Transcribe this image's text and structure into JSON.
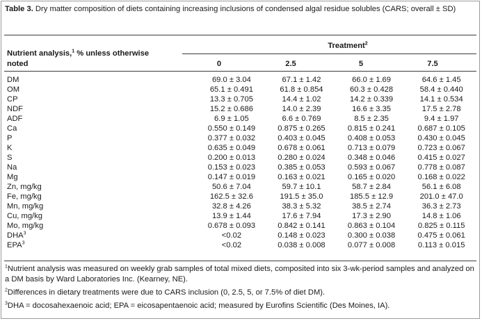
{
  "caption": {
    "label": "Table 3.",
    "text": " Dry matter composition of diets containing increasing inclusions of condensed algal residue solubles (CARS; overall ± SD)"
  },
  "header": {
    "row_label_line1": "Nutrient analysis,",
    "row_label_sup": "1",
    "row_label_line1_tail": " % unless otherwise",
    "row_label_line2": "noted",
    "treatment_label": "Treatment",
    "treatment_sup": "2",
    "columns": [
      "0",
      "2.5",
      "5",
      "7.5"
    ]
  },
  "rows": [
    {
      "label": "DM",
      "sup": "",
      "values": [
        "69.0 ± 3.04",
        "67.1 ± 1.42",
        "66.0 ± 1.69",
        "64.6 ± 1.45"
      ]
    },
    {
      "label": "OM",
      "sup": "",
      "values": [
        "65.1 ± 0.491",
        "61.8 ± 0.854",
        "60.3 ± 0.428",
        "58.4 ± 0.440"
      ]
    },
    {
      "label": "CP",
      "sup": "",
      "values": [
        "13.3 ± 0.705",
        "14.4 ± 1.02",
        "14.2 ± 0.339",
        "14.1 ± 0.534"
      ]
    },
    {
      "label": "NDF",
      "sup": "",
      "values": [
        "15.2 ± 0.686",
        "14.0 ± 2.39",
        "16.6 ± 3.35",
        "17.5 ± 2.78"
      ]
    },
    {
      "label": "ADF",
      "sup": "",
      "values": [
        "6.9 ± 1.05",
        "6.6 ± 0.769",
        "8.5 ± 2.35",
        "9.4 ± 1.97"
      ]
    },
    {
      "label": "Ca",
      "sup": "",
      "values": [
        "0.550 ± 0.149",
        "0.875 ± 0.265",
        "0.815 ± 0.241",
        "0.687 ± 0.105"
      ]
    },
    {
      "label": "P",
      "sup": "",
      "values": [
        "0.377 ± 0.032",
        "0.403 ± 0.045",
        "0.408 ± 0.053",
        "0.430 ± 0.045"
      ]
    },
    {
      "label": "K",
      "sup": "",
      "values": [
        "0.635 ± 0.049",
        "0.678 ± 0.061",
        "0.713 ± 0.079",
        "0.723 ± 0.067"
      ]
    },
    {
      "label": "S",
      "sup": "",
      "values": [
        "0.200 ± 0.013",
        "0.280 ± 0.024",
        "0.348 ± 0.046",
        "0.415 ± 0.027"
      ]
    },
    {
      "label": "Na",
      "sup": "",
      "values": [
        "0.153 ± 0.023",
        "0.385 ± 0.053",
        "0.593 ± 0.067",
        "0.778 ± 0.087"
      ]
    },
    {
      "label": "Mg",
      "sup": "",
      "values": [
        "0.147 ± 0.019",
        "0.163 ± 0.021",
        "0.165 ± 0.020",
        "0.168 ± 0.022"
      ]
    },
    {
      "label": "Zn, mg/kg",
      "sup": "",
      "values": [
        "50.6 ± 7.04",
        "59.7 ± 10.1",
        "58.7 ± 2.84",
        "56.1 ± 6.08"
      ]
    },
    {
      "label": "Fe, mg/kg",
      "sup": "",
      "values": [
        "162.5 ± 32.6",
        "191.5 ± 35.0",
        "185.5 ± 12.9",
        "201.0 ± 47.0"
      ]
    },
    {
      "label": "Mn, mg/kg",
      "sup": "",
      "values": [
        "32.8 ± 4.26",
        "38.3 ± 5.32",
        "38.5 ± 2.74",
        "36.3 ± 2.73"
      ]
    },
    {
      "label": "Cu, mg/kg",
      "sup": "",
      "values": [
        "13.9 ± 1.44",
        "17.6 ± 7.94",
        "17.3 ± 2.90",
        "14.8 ± 1.06"
      ]
    },
    {
      "label": "Mo, mg/kg",
      "sup": "",
      "values": [
        "0.678 ± 0.093",
        "0.842 ± 0.141",
        "0.863 ± 0.104",
        "0.825 ± 0.115"
      ]
    },
    {
      "label": "DHA",
      "sup": "3",
      "values": [
        "<0.02",
        "0.148 ± 0.023",
        "0.300 ± 0.038",
        "0.475 ± 0.061"
      ]
    },
    {
      "label": "EPA",
      "sup": "3",
      "values": [
        "<0.02",
        "0.038 ± 0.008",
        "0.077 ± 0.008",
        "0.113 ± 0.015"
      ]
    }
  ],
  "footnotes": [
    {
      "sup": "1",
      "text": "Nutrient analysis was measured on weekly grab samples of total mixed diets, composited into six 3-wk-period samples and analyzed on a DM basis by Ward Laboratories Inc. (Kearney, NE)."
    },
    {
      "sup": "2",
      "text": "Differences in dietary treatments were due to CARS inclusion (0, 2.5, 5, or 7.5% of diet DM)."
    },
    {
      "sup": "3",
      "text": "DHA = docosahexaenoic acid; EPA = eicosapentaenoic acid; measured by Eurofins Scientific (Des Moines, IA)."
    }
  ]
}
